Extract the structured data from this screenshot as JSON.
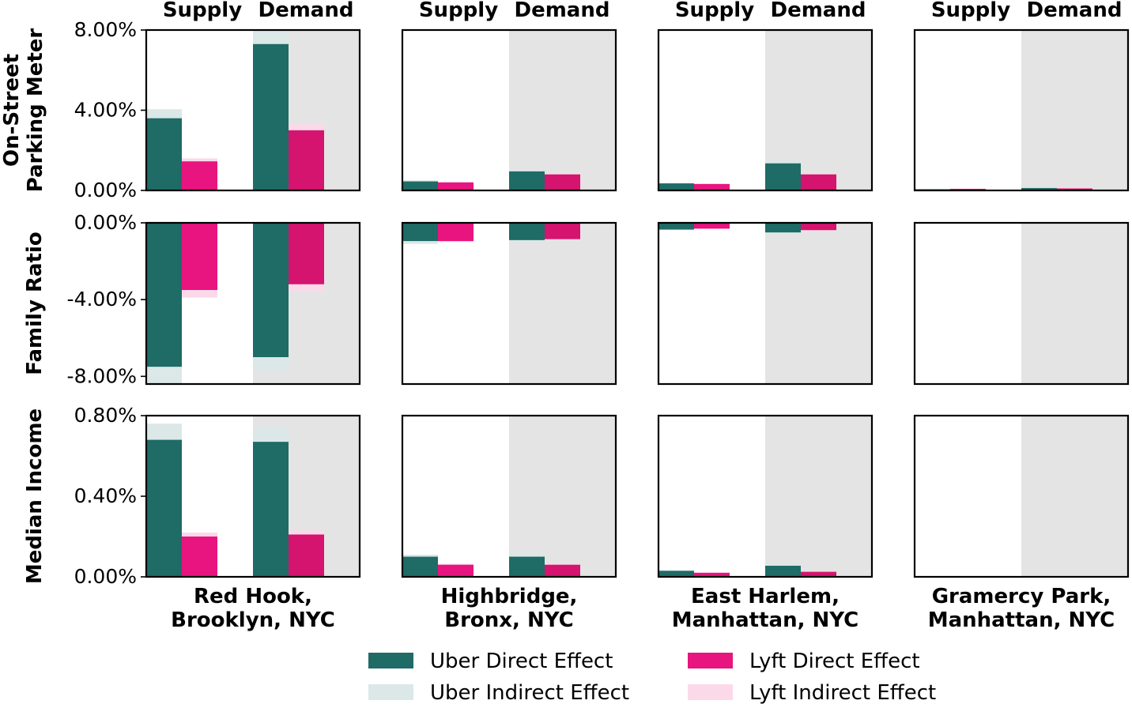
{
  "chart_data": {
    "type": "bar",
    "groups": [
      "Supply",
      "Demand"
    ],
    "columns": [
      [
        "Red Hook,",
        "Brooklyn, NYC"
      ],
      [
        "Highbridge,",
        "Bronx, NYC"
      ],
      [
        "East Harlem,",
        "Manhattan, NYC"
      ],
      [
        "Gramercy Park,",
        "Manhattan, NYC"
      ]
    ],
    "rows": [
      {
        "label": [
          "On-Street",
          "Parking Meter"
        ],
        "ylim": [
          0,
          8.0
        ],
        "ticks": [
          {
            "v": 8.0,
            "t": "8.00%"
          },
          {
            "v": 4.0,
            "t": "4.00%"
          },
          {
            "v": 0.0,
            "t": "0.00%"
          }
        ]
      },
      {
        "label": [
          "Family Ratio"
        ],
        "ylim": [
          -8.4,
          0
        ],
        "ticks": [
          {
            "v": 0.0,
            "t": "0.00%"
          },
          {
            "v": -4.0,
            "t": "-4.00%"
          },
          {
            "v": -8.0,
            "t": "-8.00%"
          }
        ]
      },
      {
        "label": [
          "Median Income"
        ],
        "ylim": [
          0,
          0.8
        ],
        "ticks": [
          {
            "v": 0.8,
            "t": "0.80%"
          },
          {
            "v": 0.4,
            "t": "0.40%"
          },
          {
            "v": 0.0,
            "t": "0.00%"
          }
        ]
      }
    ],
    "series": [
      {
        "name": "Uber Direct Effect",
        "color": "#1f6b66"
      },
      {
        "name": "Uber Indirect Effect",
        "color": "#dbe8e7"
      },
      {
        "name": "Lyft Direct Effect",
        "color": "#e8147f"
      },
      {
        "name": "Lyft Indirect Effect",
        "color": "#fbd9e9"
      }
    ],
    "demand_background": "#e4e4e4",
    "values": [
      [
        {
          "Supply": {
            "uber_direct": 3.6,
            "uber_total": 4.05,
            "lyft_direct": 1.45,
            "lyft_total": 1.6
          },
          "Demand": {
            "uber_direct": 7.3,
            "uber_total": 8.0,
            "lyft_direct": 3.0,
            "lyft_total": 3.3
          }
        },
        {
          "Supply": {
            "uber_direct": 0.45,
            "uber_total": 0.5,
            "lyft_direct": 0.4,
            "lyft_total": 0.42
          },
          "Demand": {
            "uber_direct": 0.95,
            "uber_total": 1.05,
            "lyft_direct": 0.8,
            "lyft_total": 0.85
          }
        },
        {
          "Supply": {
            "uber_direct": 0.35,
            "uber_total": 0.38,
            "lyft_direct": 0.32,
            "lyft_total": 0.34
          },
          "Demand": {
            "uber_direct": 1.35,
            "uber_total": 1.5,
            "lyft_direct": 0.8,
            "lyft_total": 0.85
          }
        },
        {
          "Supply": {
            "uber_direct": 0.06,
            "uber_total": 0.07,
            "lyft_direct": 0.08,
            "lyft_total": 0.09
          },
          "Demand": {
            "uber_direct": 0.12,
            "uber_total": 0.13,
            "lyft_direct": 0.1,
            "lyft_total": 0.11
          }
        }
      ],
      [
        {
          "Supply": {
            "uber_direct": -7.5,
            "uber_total": -8.4,
            "lyft_direct": -3.5,
            "lyft_total": -3.9
          },
          "Demand": {
            "uber_direct": -7.0,
            "uber_total": -7.7,
            "lyft_direct": -3.2,
            "lyft_total": -3.55
          }
        },
        {
          "Supply": {
            "uber_direct": -0.95,
            "uber_total": -1.1,
            "lyft_direct": -0.95,
            "lyft_total": -1.0
          },
          "Demand": {
            "uber_direct": -0.9,
            "uber_total": -1.0,
            "lyft_direct": -0.85,
            "lyft_total": -0.9
          }
        },
        {
          "Supply": {
            "uber_direct": -0.35,
            "uber_total": -0.38,
            "lyft_direct": -0.3,
            "lyft_total": -0.33
          },
          "Demand": {
            "uber_direct": -0.5,
            "uber_total": -0.55,
            "lyft_direct": -0.38,
            "lyft_total": -0.4
          }
        },
        {
          "Supply": {
            "uber_direct": 0,
            "uber_total": 0,
            "lyft_direct": 0,
            "lyft_total": 0
          },
          "Demand": {
            "uber_direct": 0,
            "uber_total": 0,
            "lyft_direct": 0,
            "lyft_total": 0
          }
        }
      ],
      [
        {
          "Supply": {
            "uber_direct": 0.68,
            "uber_total": 0.76,
            "lyft_direct": 0.2,
            "lyft_total": 0.22
          },
          "Demand": {
            "uber_direct": 0.67,
            "uber_total": 0.74,
            "lyft_direct": 0.21,
            "lyft_total": 0.23
          }
        },
        {
          "Supply": {
            "uber_direct": 0.1,
            "uber_total": 0.11,
            "lyft_direct": 0.06,
            "lyft_total": 0.065
          },
          "Demand": {
            "uber_direct": 0.1,
            "uber_total": 0.11,
            "lyft_direct": 0.06,
            "lyft_total": 0.065
          }
        },
        {
          "Supply": {
            "uber_direct": 0.03,
            "uber_total": 0.032,
            "lyft_direct": 0.02,
            "lyft_total": 0.022
          },
          "Demand": {
            "uber_direct": 0.055,
            "uber_total": 0.058,
            "lyft_direct": 0.025,
            "lyft_total": 0.027
          }
        },
        {
          "Supply": {
            "uber_direct": 0,
            "uber_total": 0,
            "lyft_direct": 0,
            "lyft_total": 0
          },
          "Demand": {
            "uber_direct": 0,
            "uber_total": 0,
            "lyft_direct": 0,
            "lyft_total": 0
          }
        }
      ]
    ]
  }
}
